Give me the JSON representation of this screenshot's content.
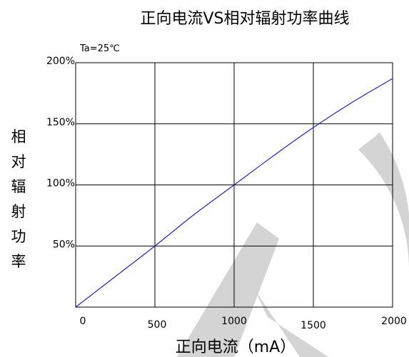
{
  "chart_data": {
    "type": "line",
    "title": "正向电流VS相对辐射功率曲线",
    "condition": "Ta=25℃",
    "xlabel": "正向电流（mA）",
    "ylabel": "相对辐射功率",
    "x_ticks": [
      "0",
      "500",
      "1000",
      "1500",
      "2000"
    ],
    "y_ticks": [
      "50%",
      "100%",
      "150%",
      "200%"
    ],
    "xlim": [
      0,
      2000
    ],
    "ylim": [
      0,
      200
    ],
    "grid": true,
    "series": [
      {
        "color": "#2020d0",
        "x": [
          0,
          250,
          500,
          750,
          1000,
          1250,
          1500,
          1750,
          2000
        ],
        "y": [
          0,
          25,
          50,
          76,
          100,
          124,
          147,
          168,
          187
        ]
      }
    ]
  },
  "watermark": {
    "color": "#d4d4d4"
  }
}
